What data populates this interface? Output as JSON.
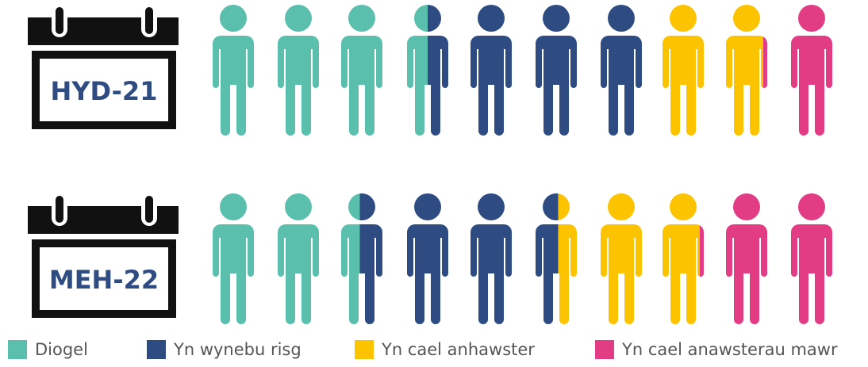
{
  "chart_data": {
    "type": "pictogram",
    "categories": [
      "HYD-21",
      "MEH-22"
    ],
    "series": [
      {
        "name": "Diogel",
        "color": "#5bbfad",
        "values": [
          3.5,
          2.45
        ]
      },
      {
        "name": "Yn wynebu risg",
        "color": "#2e4c82",
        "values": [
          3.5,
          3.1
        ]
      },
      {
        "name": "Yn cael anhawster",
        "color": "#fcc400",
        "values": [
          1.9,
          2.35
        ]
      },
      {
        "name": "Yn cael anawsterau mawr",
        "color": "#e23c85",
        "values": [
          1.1,
          2.1
        ]
      }
    ]
  }
}
